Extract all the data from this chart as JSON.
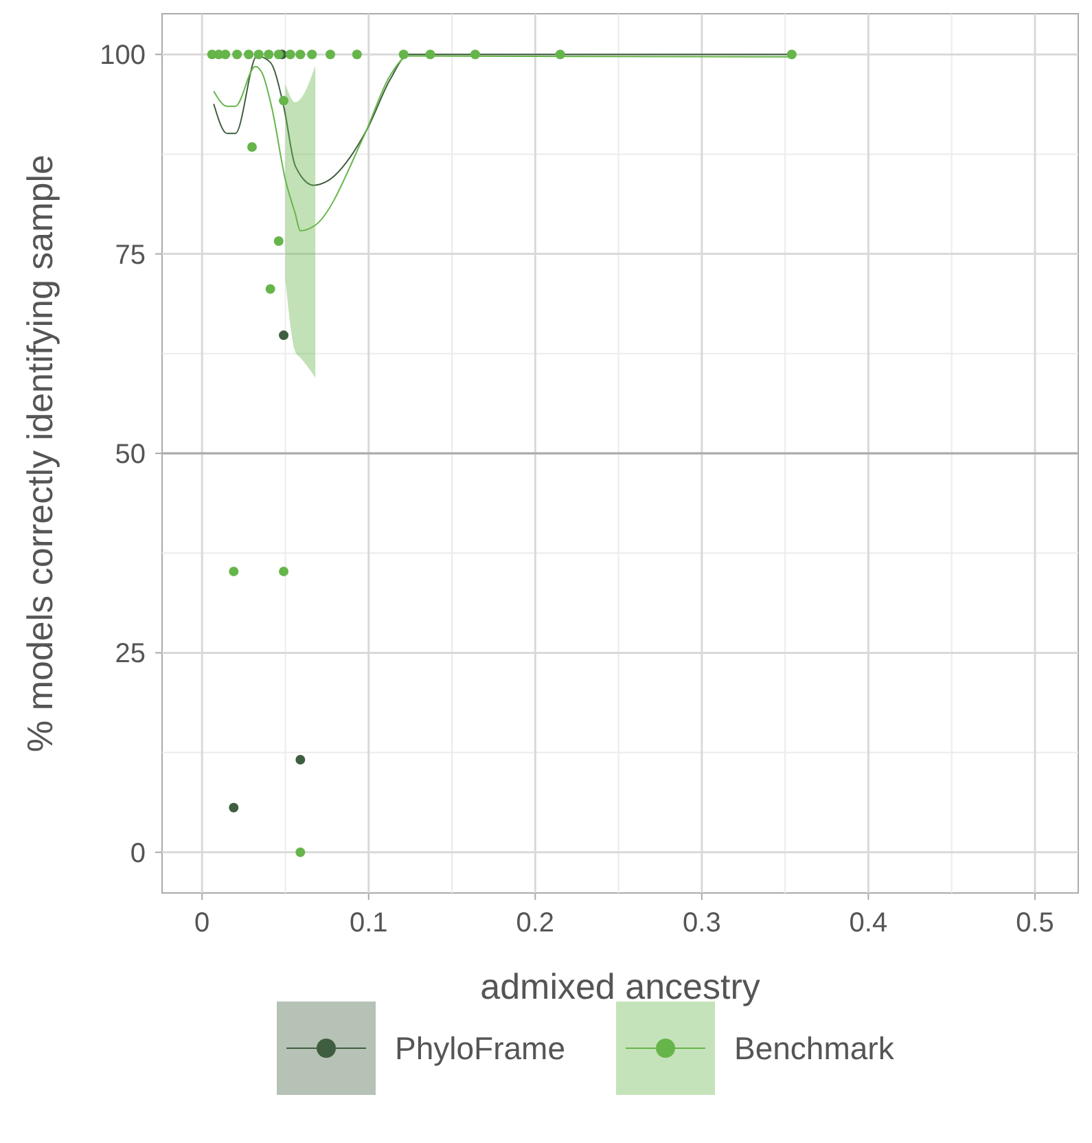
{
  "chart_data": {
    "type": "scatter",
    "xlabel": "admixed ancestry",
    "ylabel": "% models correctly identifying sample",
    "xlim": [
      -0.024,
      0.526
    ],
    "ylim": [
      -5.1,
      105.1
    ],
    "xticks": [
      0,
      0.1,
      0.2,
      0.3,
      0.4,
      0.5
    ],
    "yticks": [
      0,
      25,
      50,
      75,
      100
    ],
    "grid": true,
    "legend": "bottom",
    "ref_lines": [
      {
        "axis": "y",
        "value": 50,
        "color": "#aaaaaa"
      }
    ],
    "series": [
      {
        "name": "PhyloFrame",
        "marker": "circle",
        "color": "#3f5e3f",
        "x": [
          0.019,
          0.048,
          0.049,
          0.059
        ],
        "values": [
          5.6,
          100,
          64.8,
          11.6
        ]
      },
      {
        "name": "Benchmark",
        "marker": "circle",
        "color": "#66b54a",
        "x": [
          0.006,
          0.01,
          0.014,
          0.021,
          0.028,
          0.034,
          0.04,
          0.046,
          0.053,
          0.059,
          0.066,
          0.077,
          0.093,
          0.121,
          0.137,
          0.164,
          0.215,
          0.354,
          0.049,
          0.03,
          0.046,
          0.041,
          0.019,
          0.049,
          0.059
        ],
        "values": [
          100,
          100,
          100,
          100,
          100,
          100,
          100,
          100,
          100,
          100,
          100,
          100,
          100,
          100,
          100,
          100,
          100,
          100,
          94.2,
          88.4,
          76.6,
          70.6,
          35.2,
          35.2,
          0
        ]
      },
      {
        "type": "line",
        "marker": "none",
        "color": "#3f5e3f",
        "x": [
          0.007,
          0.015,
          0.02,
          0.033,
          0.041,
          0.049,
          0.056,
          0.067,
          0.075,
          0.099,
          0.113,
          0.124,
          0.355
        ],
        "values": [
          93.8,
          90.1,
          90.1,
          99.8,
          99.0,
          93.5,
          86.0,
          83.6,
          84.1,
          90.6,
          96.9,
          100,
          100
        ]
      },
      {
        "type": "line",
        "marker": "none",
        "color": "#66b54a",
        "x": [
          0.007,
          0.015,
          0.02,
          0.032,
          0.036,
          0.042,
          0.05,
          0.056,
          0.059,
          0.068,
          0.097,
          0.113,
          0.124,
          0.355
        ],
        "values": [
          95.4,
          93.5,
          93.5,
          98.5,
          97.7,
          93.2,
          84.3,
          80.0,
          77.9,
          78.6,
          89.7,
          97.4,
          99.8,
          99.7
        ],
        "lower": [
          null,
          null,
          null,
          null,
          null,
          null,
          71.8,
          62.7,
          62.0,
          59.5,
          null,
          null,
          null,
          null
        ],
        "upper": [
          null,
          null,
          null,
          null,
          null,
          null,
          96.3,
          94.0,
          94.4,
          98.6,
          null,
          null,
          null,
          null
        ]
      }
    ]
  }
}
